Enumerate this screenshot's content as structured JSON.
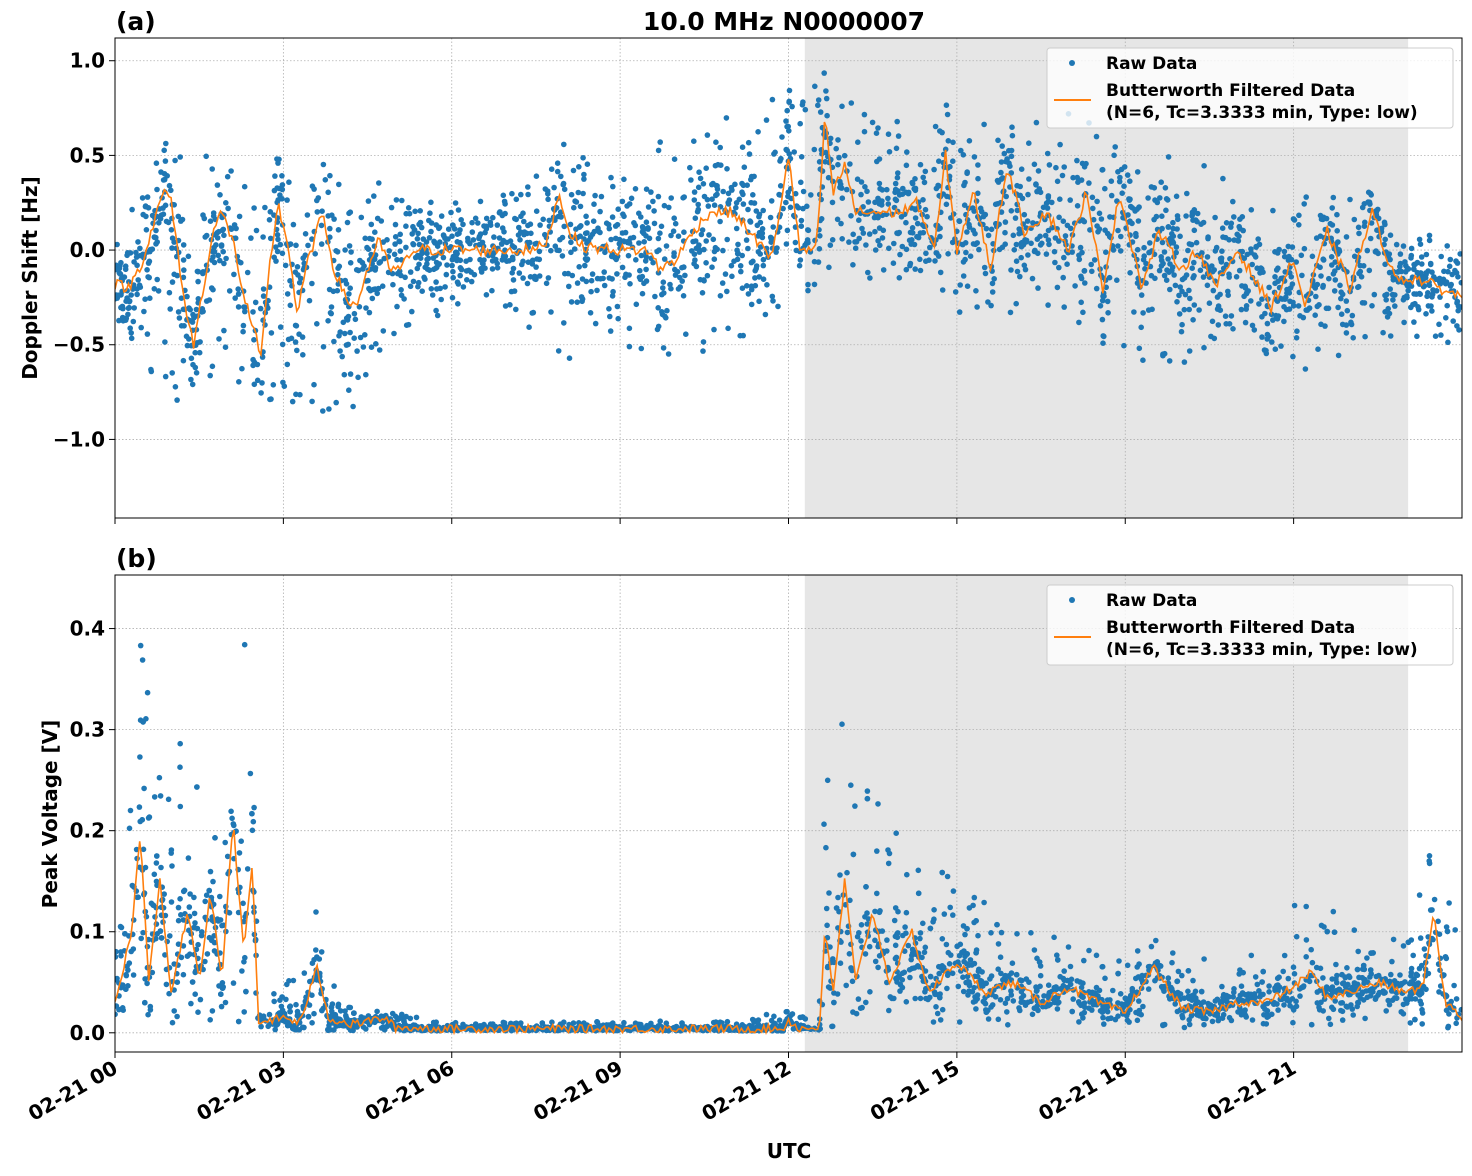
{
  "chart_data": {
    "title": "10.0 MHz N0000007",
    "xlabel": "UTC",
    "x_ticks": [
      "02-21 00",
      "02-21 03",
      "02-21 06",
      "02-21 09",
      "02-21 12",
      "02-21 15",
      "02-21 18",
      "02-21 21"
    ],
    "x_tick_hours": [
      0,
      3,
      6,
      9,
      12,
      15,
      18,
      21
    ],
    "xlim_hours": [
      0,
      24
    ],
    "shaded_region_hours": [
      12.29,
      23.04
    ],
    "colors": {
      "raw": "#1f77b4",
      "filtered": "#ff7f0e",
      "shade": "#e6e6e6",
      "grid": "#b0b0b0"
    },
    "legend": {
      "placement": "upper right",
      "raw_label": "Raw Data",
      "filtered_label_1": "Butterworth Filtered Data",
      "filtered_label_2": "(N=6, Tc=3.3333 min, Type: low)"
    },
    "grid": true,
    "panels": [
      {
        "label": "(a)",
        "type": "scatter+line",
        "ylabel": "Doppler Shift [Hz]",
        "ylim": [
          -1.415,
          1.12
        ],
        "y_ticks": [
          1.0,
          0.5,
          0.0,
          -0.5,
          -1.0
        ],
        "y_tick_labels": [
          "1.0",
          "0.5",
          "0.0",
          "−0.5",
          "−1.0"
        ],
        "filtered": {
          "x": [
            0,
            0.25,
            0.5,
            0.75,
            0.9,
            1.0,
            1.25,
            1.4,
            1.6,
            1.75,
            1.9,
            2.1,
            2.3,
            2.5,
            2.6,
            2.75,
            2.9,
            3.1,
            3.25,
            3.4,
            3.7,
            3.9,
            4.1,
            4.3,
            4.5,
            4.7,
            4.9,
            5.1,
            5.3,
            6,
            7,
            7.5,
            7.7,
            7.9,
            8.1,
            8.3,
            9.0,
            9.5,
            9.7,
            10,
            10.3,
            10.6,
            11,
            11.3,
            11.7,
            12.0,
            12.2,
            12.5,
            12.65,
            12.8,
            13.0,
            13.2,
            13.5,
            14,
            14.3,
            14.6,
            14.8,
            15.0,
            15.3,
            15.6,
            15.9,
            16.2,
            16.6,
            17.0,
            17.3,
            17.6,
            17.9,
            18.3,
            18.6,
            19,
            19.3,
            19.6,
            20,
            20.3,
            20.6,
            21,
            21.2,
            21.6,
            22,
            22.4,
            22.8,
            23.2,
            23.6,
            24
          ],
          "y": [
            -0.18,
            -0.2,
            -0.05,
            0.2,
            0.33,
            0.25,
            -0.3,
            -0.5,
            -0.15,
            0.1,
            0.2,
            0.05,
            -0.25,
            -0.45,
            -0.58,
            -0.1,
            0.25,
            0.0,
            -0.35,
            -0.1,
            0.2,
            -0.1,
            -0.25,
            -0.3,
            -0.1,
            0.05,
            -0.1,
            -0.1,
            0.0,
            0.0,
            0.0,
            0.0,
            0.05,
            0.3,
            0.1,
            0.02,
            0.0,
            0.0,
            -0.1,
            -0.05,
            0.1,
            0.2,
            0.2,
            0.1,
            -0.05,
            0.5,
            0.0,
            0.0,
            0.7,
            0.3,
            0.45,
            0.2,
            0.2,
            0.2,
            0.25,
            0.0,
            0.5,
            0.0,
            0.3,
            -0.1,
            0.45,
            0.1,
            0.2,
            0.0,
            0.3,
            -0.2,
            0.3,
            -0.2,
            0.1,
            -0.1,
            0.0,
            -0.2,
            0.0,
            -0.15,
            -0.3,
            -0.05,
            -0.3,
            0.1,
            -0.2,
            0.2,
            -0.15,
            -0.15,
            -0.2,
            -0.25
          ]
        },
        "raw_envelope": {
          "x": [
            0,
            1,
            2,
            2.6,
            3,
            4,
            5,
            6,
            7,
            8,
            9,
            10,
            11,
            12,
            12.6,
            13,
            14,
            15,
            16,
            17,
            18,
            19,
            20,
            21,
            22,
            23,
            24
          ],
          "lo": [
            -0.4,
            -0.85,
            -0.6,
            -1.05,
            -0.8,
            -0.95,
            -0.5,
            -0.3,
            -0.3,
            -0.6,
            -0.5,
            -0.6,
            -0.5,
            -0.3,
            -0.1,
            -0.1,
            -0.2,
            -0.35,
            -0.35,
            -0.45,
            -0.55,
            -0.6,
            -0.5,
            -0.6,
            -0.55,
            -0.45,
            -0.5
          ],
          "hi": [
            0.1,
            0.5,
            0.5,
            0.2,
            0.45,
            0.35,
            0.3,
            0.25,
            0.3,
            0.6,
            0.5,
            0.6,
            0.75,
            0.85,
            1.0,
            0.8,
            0.7,
            0.75,
            0.6,
            0.8,
            0.5,
            0.5,
            0.4,
            0.3,
            0.3,
            0.1,
            0.05
          ]
        }
      },
      {
        "label": "(b)",
        "type": "scatter+line",
        "ylabel": "Peak Voltage [V]",
        "ylim": [
          -0.019,
          0.453
        ],
        "y_ticks": [
          0.4,
          0.3,
          0.2,
          0.1,
          0.0
        ],
        "y_tick_labels": [
          "0.4",
          "0.3",
          "0.2",
          "0.1",
          "0.0"
        ],
        "filtered": {
          "x": [
            0,
            0.3,
            0.45,
            0.6,
            0.8,
            1.0,
            1.3,
            1.5,
            1.7,
            1.9,
            2.1,
            2.3,
            2.45,
            2.55,
            3.0,
            3.3,
            3.6,
            3.8,
            4.2,
            4.8,
            5.0,
            6,
            9,
            11.9,
            12.0,
            12.2,
            12.55,
            12.65,
            12.8,
            13.0,
            13.2,
            13.5,
            13.8,
            14.2,
            14.5,
            15,
            15.5,
            16,
            16.5,
            17,
            17.5,
            18,
            18.5,
            19,
            19.5,
            20,
            20.5,
            21,
            21.3,
            21.6,
            22,
            22.5,
            23,
            23.3,
            23.5,
            23.7,
            24
          ],
          "y": [
            0.03,
            0.1,
            0.2,
            0.05,
            0.15,
            0.04,
            0.12,
            0.05,
            0.14,
            0.05,
            0.21,
            0.08,
            0.17,
            0.01,
            0.015,
            0.01,
            0.065,
            0.015,
            0.008,
            0.015,
            0.005,
            0.004,
            0.004,
            0.004,
            0.012,
            0.004,
            0.005,
            0.1,
            0.04,
            0.15,
            0.05,
            0.12,
            0.05,
            0.1,
            0.04,
            0.07,
            0.04,
            0.05,
            0.03,
            0.045,
            0.03,
            0.02,
            0.065,
            0.025,
            0.02,
            0.03,
            0.03,
            0.045,
            0.06,
            0.035,
            0.04,
            0.05,
            0.04,
            0.045,
            0.12,
            0.03,
            0.015
          ]
        },
        "raw_envelope": {
          "x": [
            0,
            0.4,
            1,
            1.3,
            2,
            2.4,
            2.55,
            3,
            3.6,
            4,
            5,
            6,
            11,
            12,
            12.5,
            12.6,
            13,
            14,
            15,
            16,
            17,
            18,
            18.5,
            19,
            20,
            21,
            22,
            23,
            23.5,
            24
          ],
          "lo": [
            0.005,
            0.01,
            0.01,
            0.01,
            0.01,
            0.01,
            0.003,
            0.003,
            0.003,
            0.002,
            0.002,
            0.002,
            0.002,
            0.002,
            0.002,
            0.005,
            0.008,
            0.008,
            0.008,
            0.005,
            0.005,
            0.005,
            0.005,
            0.005,
            0.005,
            0.005,
            0.005,
            0.005,
            0.005,
            0.005
          ],
          "hi": [
            0.12,
            0.4,
            0.25,
            0.32,
            0.24,
            0.43,
            0.05,
            0.04,
            0.13,
            0.03,
            0.02,
            0.01,
            0.012,
            0.025,
            0.01,
            0.31,
            0.33,
            0.2,
            0.15,
            0.11,
            0.09,
            0.07,
            0.11,
            0.07,
            0.08,
            0.13,
            0.12,
            0.1,
            0.19,
            0.08
          ]
        }
      }
    ]
  }
}
